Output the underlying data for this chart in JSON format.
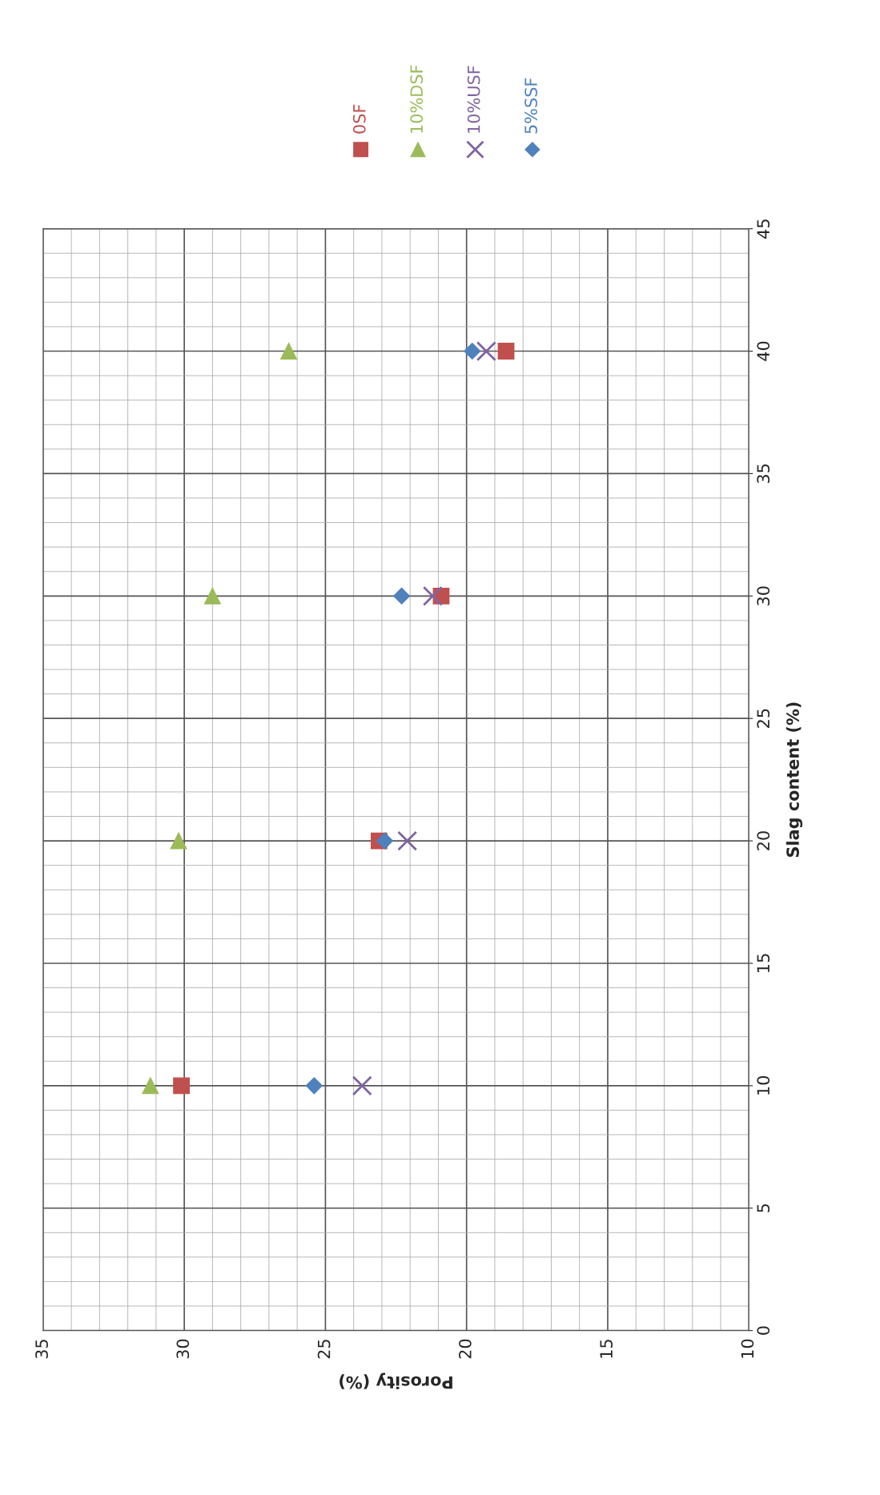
{
  "chart_data": {
    "type": "scatter",
    "xlabel": "Porosity (%)",
    "ylabel": "Slag content (%)",
    "series": [
      {
        "name": "0SF",
        "color": "#c0504d",
        "marker": "square",
        "x": [
          30.1,
          23.1,
          20.9,
          18.6
        ],
        "values": [
          10,
          20,
          30,
          40
        ]
      },
      {
        "name": "10%DSF",
        "color": "#9bbb59",
        "marker": "triangle",
        "x": [
          31.2,
          30.2,
          29.0,
          26.3
        ],
        "values": [
          10,
          20,
          30,
          40
        ]
      },
      {
        "name": "10%USF",
        "color": "#8064a2",
        "marker": "cross",
        "x": [
          23.7,
          22.1,
          21.2,
          19.3
        ],
        "values": [
          10,
          20,
          30,
          40
        ]
      },
      {
        "name": "5%SSF",
        "color": "#4f81bd",
        "marker": "diamond",
        "x": [
          25.4,
          22.9,
          22.3,
          19.8
        ],
        "values": [
          10,
          20,
          30,
          40
        ]
      }
    ],
    "ylim": [
      0,
      45
    ],
    "yticks": [
      0,
      5,
      10,
      15,
      20,
      25,
      30,
      35,
      40,
      45
    ],
    "xlim": [
      35,
      10
    ],
    "xticks": [
      10,
      15,
      20,
      25,
      30,
      35
    ],
    "grid": true,
    "legend": "top"
  }
}
